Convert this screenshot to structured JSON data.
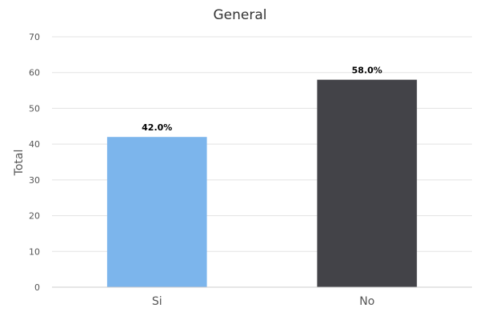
{
  "chart_data": {
    "type": "bar",
    "title": "General",
    "ylabel": "Total",
    "xlabel": "",
    "categories": [
      "Si",
      "No"
    ],
    "values": [
      42.0,
      58.0
    ],
    "data_labels": [
      "42.0%",
      "58.0%"
    ],
    "colors": [
      "#7cb5ec",
      "#434348"
    ],
    "ylim": [
      0,
      70
    ],
    "yticks": [
      0,
      10,
      20,
      30,
      40,
      50,
      60,
      70
    ],
    "grid": true,
    "legend": "none"
  }
}
